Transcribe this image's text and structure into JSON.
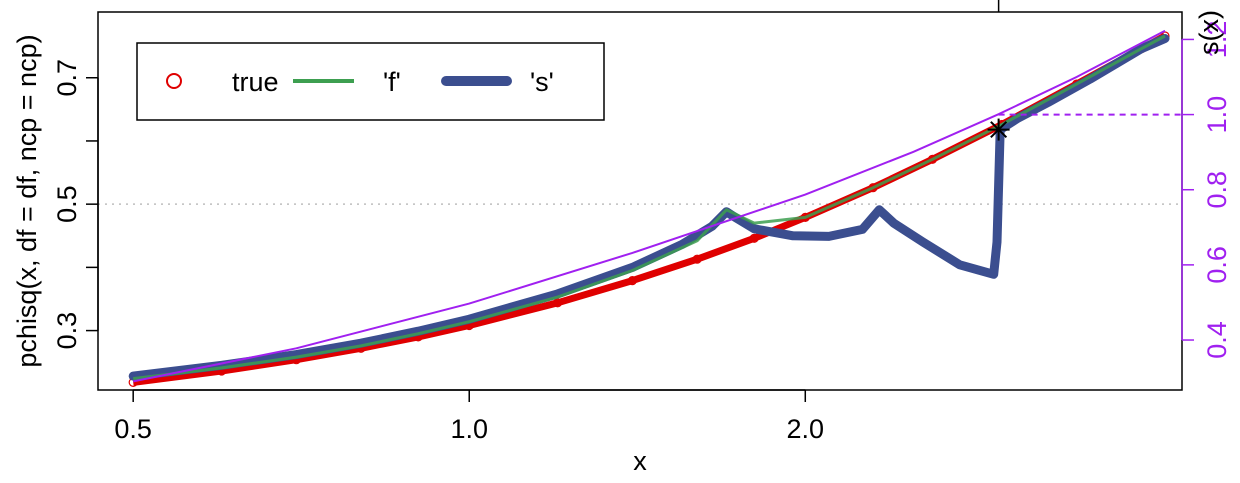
{
  "chart_data": {
    "type": "line",
    "xlabel": "x",
    "ylabel": "pchisq(x, df = df, ncp = ncp)",
    "y2label": "s(x)",
    "x_scale": "log",
    "xlim": [
      0.465,
      4.35
    ],
    "ylim": [
      0.206,
      0.804
    ],
    "y2lim": [
      0.267,
      1.273
    ],
    "x_ticks": [
      "0.5",
      "1.0",
      "2.0"
    ],
    "y_ticks": [
      "0.3",
      "0.5",
      "0.7"
    ],
    "y2_ticks": [
      "0.4",
      "0.6",
      "0.8",
      "1.0",
      "1.2"
    ],
    "y2_color": "#A020F0",
    "legend": {
      "placement": "top-left",
      "entries": [
        {
          "label": "true",
          "color": "#DF0000",
          "style": "open-circle"
        },
        {
          "label": "'f'",
          "color": "#3D9F50",
          "style": "line"
        },
        {
          "label": "'s'",
          "color": "#3B4E8F",
          "style": "thick-line"
        }
      ]
    },
    "series": [
      {
        "name": "true",
        "color": "#DF0000",
        "x": [
          0.5,
          0.6,
          0.7,
          0.8,
          0.9,
          1.0,
          1.2,
          1.4,
          1.6,
          1.8,
          2.0,
          2.3,
          2.6,
          3.0,
          3.5,
          4.0,
          4.2
        ],
        "y": [
          0.218,
          0.236,
          0.254,
          0.272,
          0.29,
          0.308,
          0.344,
          0.379,
          0.413,
          0.446,
          0.479,
          0.526,
          0.571,
          0.626,
          0.69,
          0.746,
          0.766
        ]
      },
      {
        "name": "'f'",
        "color": "#3D9F50",
        "x": [
          0.5,
          0.6,
          0.7,
          0.8,
          0.9,
          1.0,
          1.2,
          1.4,
          1.6,
          1.7,
          1.8,
          2.0,
          2.3,
          2.6,
          3.0,
          3.5,
          4.0,
          4.2
        ],
        "y": [
          0.224,
          0.241,
          0.258,
          0.276,
          0.295,
          0.314,
          0.353,
          0.395,
          0.442,
          0.491,
          0.47,
          0.479,
          0.526,
          0.571,
          0.626,
          0.69,
          0.746,
          0.766
        ]
      },
      {
        "name": "'s'",
        "color": "#3B4E8F",
        "x": [
          0.5,
          0.6,
          0.7,
          0.8,
          0.9,
          1.0,
          1.2,
          1.4,
          1.55,
          1.65,
          1.7,
          1.72,
          1.8,
          1.95,
          2.1,
          2.25,
          2.33,
          2.4,
          2.55,
          2.75,
          2.95,
          2.97,
          2.99,
          3.1,
          3.3,
          3.6,
          4.0,
          4.2
        ],
        "y": [
          0.228,
          0.245,
          0.262,
          0.28,
          0.299,
          0.318,
          0.358,
          0.4,
          0.436,
          0.465,
          0.488,
          0.482,
          0.461,
          0.45,
          0.449,
          0.46,
          0.491,
          0.47,
          0.44,
          0.404,
          0.389,
          0.44,
          0.618,
          0.636,
          0.661,
          0.698,
          0.746,
          0.762
        ]
      },
      {
        "name": "s(x)",
        "axis": "right",
        "color": "#A020F0",
        "x": [
          0.5,
          0.7,
          1.0,
          1.4,
          2.0,
          2.5,
          2.98,
          3.5,
          4.2
        ],
        "y": [
          0.29,
          0.378,
          0.497,
          0.632,
          0.787,
          0.901,
          1.001,
          1.1,
          1.223
        ]
      }
    ],
    "annotations": [
      {
        "type": "hline",
        "y": 0.5,
        "style": "dotted",
        "color": "#BEBEBE"
      },
      {
        "type": "hline",
        "axis": "right",
        "y": 1.0,
        "x_from": 2.98,
        "style": "dashed",
        "color": "#A020F0"
      },
      {
        "type": "point",
        "x": 2.98,
        "y": 0.618,
        "marker": "asterisk",
        "color": "#000000"
      }
    ]
  }
}
